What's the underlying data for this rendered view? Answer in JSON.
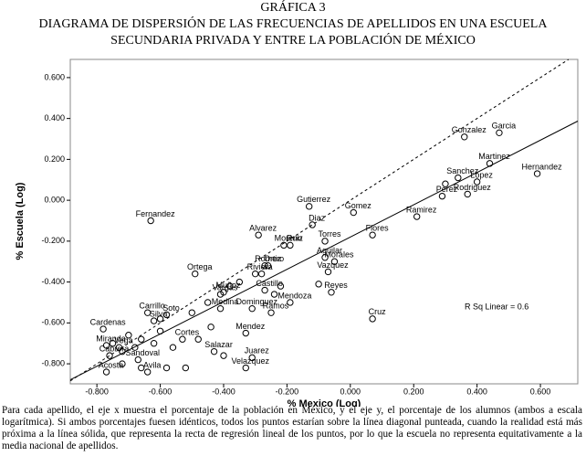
{
  "chart_data": {
    "type": "scatter",
    "label": "GRÁFICA 3",
    "title": [
      "DIAGRAMA DE DISPERSIÓN DE LAS FRECUENCIAS DE APELLIDOS EN UNA ESCUELA",
      "SECUNDARIA PRIVADA Y ENTRE LA POBLACIÓN DE MÉXICO"
    ],
    "x_label": "% Mexico (Log)",
    "y_label": "% Escuela (Log)",
    "annotation": "R Sq Linear = 0.6",
    "color": "#000000",
    "diagonal": true,
    "regression": {
      "slope": 0.79,
      "intercept": -0.18
    },
    "xlim": [
      -0.884,
      0.718
    ],
    "ylim": [
      -0.898,
      0.689
    ],
    "xticks": [
      {
        "value": -0.8,
        "label": "-0.800"
      },
      {
        "value": -0.6,
        "label": "-0.600"
      },
      {
        "value": -0.4,
        "label": "-0.400"
      },
      {
        "value": -0.2,
        "label": "-0.200"
      },
      {
        "value": 0,
        "label": "0.000"
      },
      {
        "value": 0.2,
        "label": "0.200"
      },
      {
        "value": 0.4,
        "label": "0.400"
      },
      {
        "value": 0.6,
        "label": "0.600"
      }
    ],
    "yticks": [
      {
        "value": 0.6,
        "label": "0.600"
      },
      {
        "value": 0.4,
        "label": "0.400"
      },
      {
        "value": 0.2,
        "label": "0.200"
      },
      {
        "value": 0,
        "label": "0.000"
      },
      {
        "value": -0.2,
        "label": "-0.200"
      },
      {
        "value": -0.4,
        "label": "-0.400"
      },
      {
        "value": -0.6,
        "label": "-0.600"
      },
      {
        "value": -0.8,
        "label": "-0.800"
      }
    ],
    "labels": [
      "Garcia",
      "Gonzalez",
      "Martinez",
      "Lopez",
      "Sanchez",
      "Hernandez",
      "Rodriguez",
      "Perez",
      "Ramirez",
      "Fernandez",
      "Gutierrez",
      "Diaz",
      "Gomez",
      "Alvarez",
      "Torres",
      "Flores",
      "Ruiz",
      "Moreno",
      "Romero",
      "Aguilar",
      "Morales",
      "Ortega",
      "Ortiz",
      "Muñoz",
      "Riviera",
      "Vazquez",
      "Castillo",
      "Vargas",
      "Reyes",
      "Carrillo",
      "Soto",
      "Dominguez",
      "Silva",
      "Medina",
      "Mendoza",
      "Ramos",
      "Cruz",
      "Cardenas",
      "Vega",
      "Miranda",
      "Cortes",
      "Sandoval",
      "Cabrera",
      "Acosta",
      "Avila",
      "Mendez",
      "Salazar",
      "Juarez",
      "Velazquez",
      null,
      null,
      null,
      null,
      null,
      null,
      null,
      null,
      null,
      null,
      null,
      null,
      null,
      null,
      null,
      null,
      null,
      null,
      null,
      null,
      null,
      null,
      null,
      null,
      null
    ],
    "x": [
      0.47,
      0.36,
      0.44,
      0.4,
      0.34,
      0.59,
      0.37,
      0.29,
      0.21,
      -0.63,
      -0.13,
      -0.12,
      0.01,
      -0.29,
      -0.08,
      0.07,
      -0.19,
      -0.21,
      -0.27,
      -0.08,
      -0.05,
      -0.49,
      -0.26,
      -0.4,
      -0.3,
      -0.07,
      -0.27,
      -0.41,
      -0.06,
      -0.64,
      -0.58,
      -0.31,
      -0.62,
      -0.41,
      -0.19,
      -0.25,
      0.07,
      -0.78,
      -0.73,
      -0.77,
      -0.53,
      -0.67,
      -0.76,
      -0.77,
      -0.64,
      -0.33,
      -0.43,
      -0.31,
      -0.33,
      -0.75,
      -0.7,
      -0.72,
      -0.68,
      -0.66,
      -0.62,
      -0.6,
      -0.56,
      -0.52,
      -0.48,
      -0.45,
      -0.38,
      -0.35,
      -0.28,
      -0.22,
      -0.1,
      -0.66,
      -0.72,
      -0.58,
      -0.4,
      0.3,
      -0.24,
      -0.5,
      -0.44,
      -0.6
    ],
    "y": [
      0.33,
      0.31,
      0.18,
      0.09,
      0.11,
      0.13,
      0.03,
      0.02,
      -0.08,
      -0.1,
      -0.03,
      -0.12,
      -0.06,
      -0.17,
      -0.2,
      -0.17,
      -0.22,
      -0.22,
      -0.32,
      -0.28,
      -0.3,
      -0.36,
      -0.32,
      -0.45,
      -0.36,
      -0.35,
      -0.44,
      -0.46,
      -0.45,
      -0.55,
      -0.56,
      -0.53,
      -0.59,
      -0.53,
      -0.5,
      -0.55,
      -0.58,
      -0.63,
      -0.72,
      -0.71,
      -0.68,
      -0.78,
      -0.76,
      -0.84,
      -0.84,
      -0.65,
      -0.74,
      -0.77,
      -0.82,
      -0.7,
      -0.66,
      -0.74,
      -0.72,
      -0.68,
      -0.7,
      -0.64,
      -0.72,
      -0.82,
      -0.68,
      -0.5,
      -0.42,
      -0.4,
      -0.36,
      -0.42,
      -0.41,
      -0.82,
      -0.8,
      -0.82,
      -0.76,
      0.08,
      -0.46,
      -0.55,
      -0.62,
      -0.58
    ]
  },
  "caption": "Para cada apellido, el eje x muestra el porcentaje de la población en México, y el eje y, el porcentaje de los alumnos (ambos a escala logarítmica). Si ambos porcentajes fuesen idénticos, todos los puntos estarían sobre la línea diagonal punteada, cuando la realidad está más próxima a la línea sólida, que representa la recta de regresión lineal de los puntos, por lo que la escuela no representa equitativamente a la media nacional de apellidos."
}
